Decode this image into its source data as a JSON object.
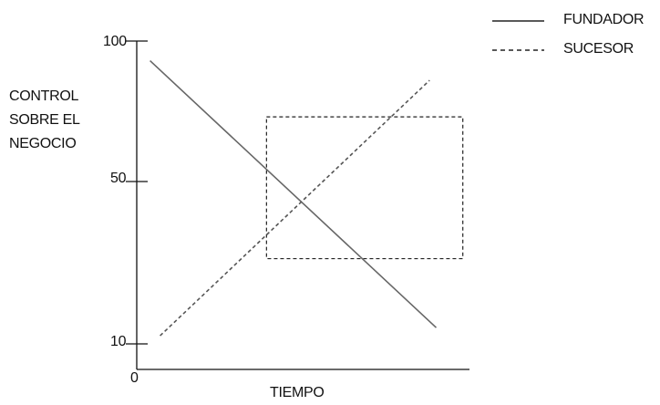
{
  "chart_data": {
    "type": "line",
    "ylabel": "CONTROL\nSOBRE EL\nNEGOCIO",
    "xlabel": "TIEMPO",
    "y_ticks": [
      "100",
      "50",
      "10"
    ],
    "x_origin_label": "0",
    "ylim": [
      0,
      100
    ],
    "xlim": [
      0,
      100
    ],
    "series": [
      {
        "name": "FUNDADOR",
        "style": "solid",
        "color": "#666666",
        "x": [
          4,
          90
        ],
        "y": [
          93,
          14
        ]
      },
      {
        "name": "SUCESOR",
        "style": "dashed",
        "color": "#555555",
        "x": [
          7,
          88
        ],
        "y": [
          12,
          86
        ]
      }
    ],
    "highlight_box": {
      "style": "dashed",
      "x_range": [
        39,
        98
      ],
      "y_range": [
        31,
        73
      ]
    },
    "legend": {
      "position": "top-right",
      "entries": [
        {
          "label": "FUNDADOR",
          "style": "solid"
        },
        {
          "label": "SUCESOR",
          "style": "dashed"
        }
      ]
    }
  }
}
